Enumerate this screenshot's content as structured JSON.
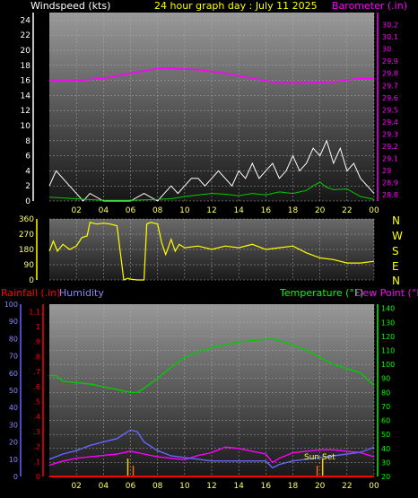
{
  "chart_data": [
    {
      "type": "line",
      "title": "24 hour graph day : July 11 2025",
      "ylabel_left": "Windspeed (kts)",
      "ylabel_right": "Barometer (.in)",
      "x_ticks": [
        "02",
        "04",
        "06",
        "08",
        "10",
        "12",
        "14",
        "16",
        "18",
        "20",
        "22",
        "00"
      ],
      "y_left_ticks": [
        "0",
        "2",
        "4",
        "6",
        "8",
        "10",
        "12",
        "14",
        "16",
        "18",
        "20",
        "22",
        "24"
      ],
      "y_right_ticks": [
        "28.8",
        "28.9",
        "29",
        "29.1",
        "29.2",
        "29.3",
        "29.4",
        "29.5",
        "29.6",
        "29.7",
        "29.8",
        "29.9",
        "30",
        "30.1",
        "30.2"
      ],
      "ylim_left": [
        0,
        25
      ],
      "ylim_right": [
        28.75,
        30.3
      ],
      "xlim": [
        0,
        24
      ],
      "series": [
        {
          "key": "barometer",
          "axis": "right",
          "color": "#ff00ff",
          "x": [
            0,
            2,
            4,
            6,
            8,
            9,
            11,
            13,
            15,
            17,
            19,
            21,
            23,
            24
          ],
          "values": [
            29.74,
            29.74,
            29.76,
            29.8,
            29.84,
            29.84,
            29.83,
            29.8,
            29.76,
            29.72,
            29.72,
            29.73,
            29.76,
            29.76
          ]
        },
        {
          "key": "windspeed_gust",
          "axis": "left",
          "color": "#ffffff",
          "x": [
            0,
            0.5,
            1,
            1.5,
            2,
            2.5,
            3,
            4,
            5,
            6,
            7,
            8,
            8.5,
            9,
            9.5,
            10,
            10.5,
            11,
            11.5,
            12,
            12.5,
            13,
            13.5,
            14,
            14.5,
            15,
            15.5,
            16,
            16.5,
            17,
            17.5,
            18,
            18.5,
            19,
            19.5,
            20,
            20.5,
            21,
            21.5,
            22,
            22.5,
            23,
            23.5,
            24
          ],
          "values": [
            2,
            4,
            3,
            2,
            1,
            0,
            1,
            0,
            0,
            0,
            1,
            0,
            1,
            2,
            1,
            2,
            3,
            3,
            2,
            3,
            4,
            3,
            2,
            4,
            3,
            5,
            3,
            4,
            5,
            3,
            4,
            6,
            4,
            5,
            7,
            6,
            8,
            5,
            7,
            4,
            5,
            3,
            2,
            1
          ]
        },
        {
          "key": "windspeed_avg",
          "axis": "left",
          "color": "#00cc00",
          "x": [
            0,
            2,
            4,
            6,
            8,
            9,
            10,
            11,
            12,
            13,
            14,
            15,
            16,
            17,
            18,
            19,
            19.5,
            20,
            20.5,
            21,
            22,
            23,
            24
          ],
          "values": [
            0.5,
            0.3,
            0.1,
            0.1,
            0.2,
            0.3,
            0.6,
            0.8,
            1,
            0.9,
            0.7,
            1,
            0.8,
            1.2,
            1,
            1.4,
            2,
            2.5,
            1.8,
            1.5,
            1.6,
            0.6,
            0.2
          ]
        }
      ]
    },
    {
      "type": "line",
      "title": "",
      "y_left_ticks": [
        "0",
        "90",
        "180",
        "270",
        "360"
      ],
      "y_right_labels": [
        "N",
        "W",
        "S",
        "E",
        "N"
      ],
      "ylim": [
        0,
        360
      ],
      "xlim": [
        0,
        24
      ],
      "series": [
        {
          "key": "wind_direction",
          "color": "#ffff00",
          "x": [
            0,
            0.3,
            0.6,
            1,
            1.5,
            2,
            2.4,
            2.8,
            3,
            3.5,
            4,
            4.5,
            5,
            5.5,
            5.8,
            6,
            6.5,
            7,
            7.2,
            7.5,
            8,
            8.3,
            8.6,
            9,
            9.3,
            9.6,
            10,
            11,
            12,
            13,
            14,
            15,
            16,
            17,
            18,
            19,
            20,
            21,
            22,
            23,
            24
          ],
          "values": [
            170,
            230,
            170,
            210,
            180,
            200,
            250,
            260,
            340,
            330,
            335,
            330,
            320,
            0,
            10,
            5,
            0,
            0,
            330,
            340,
            330,
            220,
            150,
            240,
            170,
            210,
            190,
            200,
            180,
            200,
            190,
            210,
            180,
            190,
            200,
            160,
            130,
            120,
            100,
            100,
            110
          ]
        }
      ]
    },
    {
      "type": "line",
      "title": "",
      "ylabel_left_1": "Rainfall (.in)",
      "ylabel_left_2": "Humidity",
      "ylabel_right_1": "Temperature (°F)",
      "ylabel_right_2": "Dew Point (°F)",
      "annotation": "Sun Set",
      "x_ticks": [
        "02",
        "04",
        "06",
        "08",
        "10",
        "12",
        "14",
        "16",
        "18",
        "20",
        "22",
        "00"
      ],
      "humidity_ticks": [
        "0",
        "10",
        "20",
        "30",
        "40",
        "50",
        "60",
        "70",
        "80",
        "90",
        "100"
      ],
      "rain_ticks": [
        "0",
        ".1",
        ".2",
        ".3",
        ".4",
        ".5",
        ".6",
        ".7",
        ".8",
        ".9",
        "1",
        "1.1"
      ],
      "temp_ticks": [
        "20",
        "30",
        "40",
        "50",
        "60",
        "70",
        "80",
        "90",
        "100",
        "110",
        "120",
        "130",
        "140"
      ],
      "ylim_humidity": [
        0,
        100
      ],
      "ylim_rain": [
        0,
        1.15
      ],
      "ylim_temp": [
        20,
        143
      ],
      "xlim": [
        0,
        24
      ],
      "series": [
        {
          "key": "temperature",
          "axis": "temp",
          "color": "#00cc00",
          "x": [
            0,
            0.5,
            1,
            2,
            3,
            4,
            5,
            6,
            6.5,
            7,
            8,
            9,
            10,
            11,
            12,
            13,
            14,
            15,
            16,
            16.5,
            17,
            18,
            19,
            20,
            21,
            22,
            23,
            24
          ],
          "values": [
            92,
            92,
            88,
            87,
            86,
            84,
            82,
            80,
            80,
            83,
            90,
            98,
            105,
            109,
            112,
            114,
            116,
            117,
            118,
            118,
            117,
            114,
            110,
            105,
            100,
            97,
            94,
            85
          ]
        },
        {
          "key": "dew_point",
          "axis": "temp",
          "color": "#ff00ff",
          "x": [
            0,
            1,
            2,
            3,
            4,
            5,
            6,
            7,
            8,
            9,
            10,
            11,
            12,
            13,
            14,
            15,
            16,
            16.5,
            17,
            18,
            19,
            20,
            21,
            22,
            23,
            24
          ],
          "values": [
            28,
            31,
            33,
            34,
            35,
            36,
            38,
            36,
            34,
            33,
            32,
            35,
            37,
            41,
            40,
            38,
            36,
            30,
            33,
            37,
            38,
            39,
            39,
            38,
            37,
            34
          ]
        },
        {
          "key": "humidity",
          "axis": "humidity",
          "color": "#6666ff",
          "x": [
            0,
            1,
            2,
            3,
            4,
            5,
            6,
            6.5,
            7,
            8,
            9,
            10,
            11,
            12,
            13,
            14,
            15,
            16,
            16.5,
            17,
            18,
            19,
            20,
            21,
            22,
            23,
            24
          ],
          "values": [
            10,
            13,
            15,
            18,
            20,
            22,
            27,
            26,
            20,
            15,
            12,
            11,
            10,
            9,
            9,
            9,
            9,
            9,
            5,
            7,
            9,
            10,
            11,
            12,
            13,
            14,
            17
          ]
        },
        {
          "key": "rainfall",
          "axis": "rain",
          "color": "#ff0000",
          "x": [
            0,
            24
          ],
          "values": [
            0,
            0
          ]
        }
      ],
      "sunrise_sunset_hours": [
        5.8,
        20.2
      ],
      "day_night_hours": [
        6.2,
        19.8
      ]
    }
  ],
  "colors": {
    "wind_label": "#ffffff",
    "title": "#ffff00",
    "barometer": "#ff00ff",
    "rain": "#ff0000",
    "humidity": "#8888ff",
    "temperature": "#00ff00",
    "dewpoint": "#ff00ff",
    "direction": "#ffff00"
  }
}
